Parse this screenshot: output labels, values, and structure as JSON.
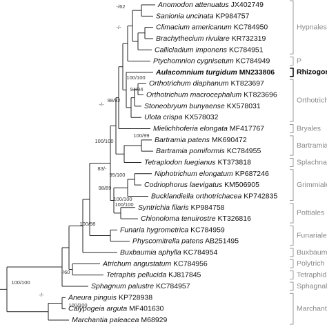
{
  "taxa": [
    {
      "name": "Anomodon attenuatus",
      "accession": "JX402749"
    },
    {
      "name": "Sanionia uncinata",
      "accession": "KP984757"
    },
    {
      "name": "Climacium americanum",
      "accession": "KC784950"
    },
    {
      "name": "Brachythecium rivulare",
      "accession": "KR732319"
    },
    {
      "name": "Callicladium imponens",
      "accession": "KC784951"
    },
    {
      "name": "Ptychomnion cygnisetum",
      "accession": "KC784949"
    },
    {
      "name": "Aulacomnium turgidum",
      "accession": "MN233806",
      "highlight": true
    },
    {
      "name": "Orthotrichum diaphanum",
      "accession": "KT823697"
    },
    {
      "name": "Orthotrichum macrocephalum",
      "accession": "KT823696"
    },
    {
      "name": "Stoneobryum bunyaense",
      "accession": "KX578031"
    },
    {
      "name": "Ulota crispa",
      "accession": "KX578032"
    },
    {
      "name": "Mielichhoferia elongata",
      "accession": "MF417767"
    },
    {
      "name": "Bartramia patens",
      "accession": "MK690472"
    },
    {
      "name": "Bartramia pomiformis",
      "accession": "KC784955"
    },
    {
      "name": "Tetraplodon fuegianus",
      "accession": "KT373818"
    },
    {
      "name": "Niphotrichum elongatum",
      "accession": "KP687246"
    },
    {
      "name": "Codriophorus laevigatus",
      "accession": "KM506905"
    },
    {
      "name": "Bucklandiella orthotrichacea",
      "accession": "KP742835"
    },
    {
      "name": "Syntrichia filaris",
      "accession": "KP984758"
    },
    {
      "name": "Chionoloma tenuirostre",
      "accession": "KT326816"
    },
    {
      "name": "Funaria hygrometrica",
      "accession": "KC784959"
    },
    {
      "name": "Physcomitrella patens",
      "accession": "AB251495"
    },
    {
      "name": "Buxbaumia aphylla",
      "accession": "KC784954"
    },
    {
      "name": "Atrichum angustatum",
      "accession": "KC784956"
    },
    {
      "name": "Tetraphis pellucida",
      "accession": "KJ817845"
    },
    {
      "name": "Sphagnum palustre",
      "accession": "KC784957"
    },
    {
      "name": "Aneura pinguis",
      "accession": "KP728938"
    },
    {
      "name": "Calypogeia arguta",
      "accession": "MF401630"
    },
    {
      "name": "Marchantia paleacea",
      "accession": "M68929"
    }
  ],
  "supports": [
    "-/62",
    "-/-",
    "100/100",
    "94/94",
    "98/92",
    "-/-",
    "100/100",
    "100/99",
    "83/-",
    "95/100",
    "98/89",
    "100/100",
    "100/100",
    "100/98",
    "-/60",
    "100/100",
    "-/-",
    "100/100"
  ],
  "clades": [
    {
      "label": "Hypnales"
    },
    {
      "label": "P"
    },
    {
      "label": "Rhizogor",
      "highlight": true
    },
    {
      "label": "Orthotrich"
    },
    {
      "label": "Bryales"
    },
    {
      "label": "Bartramia"
    },
    {
      "label": "Splachnal"
    },
    {
      "label": "Grimmiale"
    },
    {
      "label": "Pottiales"
    },
    {
      "label": "Funariales"
    },
    {
      "label": "Buxbaum"
    },
    {
      "label": "Polytrich"
    },
    {
      "label": "Tetraphid"
    },
    {
      "label": "Sphagnal"
    },
    {
      "label": "Marchanti"
    }
  ]
}
